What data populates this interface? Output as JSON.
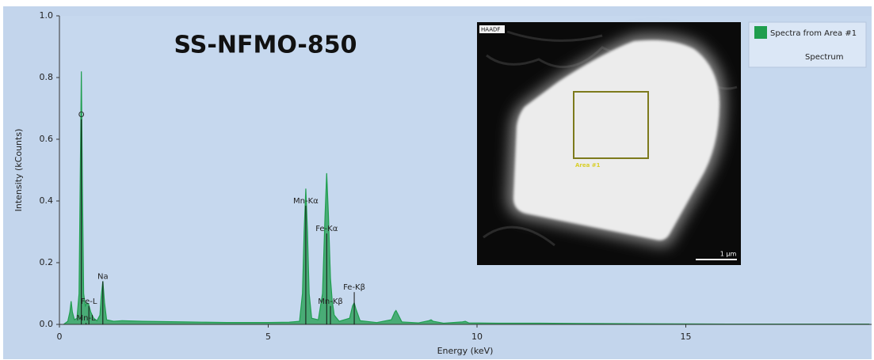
{
  "chart_data": {
    "type": "area",
    "title": "SS-NFMO-850",
    "x_label": "Energy (keV)",
    "y_label": "Intensity (kCounts)",
    "xlim": [
      0,
      19.45
    ],
    "ylim": [
      0,
      1.0
    ],
    "xticks": [
      0,
      5,
      10,
      15
    ],
    "yticks": [
      {
        "value": 0,
        "label": "0.0"
      },
      0.2,
      0.4,
      0.6,
      0.8,
      {
        "value": 1,
        "label": "1.0"
      }
    ],
    "x": [
      0.1,
      0.2,
      0.25,
      0.28,
      0.31,
      0.36,
      0.42,
      0.47,
      0.5,
      0.525,
      0.55,
      0.58,
      0.62,
      0.66,
      0.7,
      0.75,
      0.82,
      0.9,
      0.97,
      1.0,
      1.04,
      1.08,
      1.13,
      1.3,
      1.5,
      2.0,
      2.5,
      3.0,
      3.5,
      4.0,
      4.5,
      5.0,
      5.5,
      5.75,
      5.82,
      5.86,
      5.9,
      5.94,
      5.98,
      6.04,
      6.2,
      6.3,
      6.36,
      6.4,
      6.44,
      6.49,
      6.53,
      6.58,
      6.7,
      6.95,
      7.02,
      7.06,
      7.1,
      7.2,
      7.6,
      7.95,
      8.03,
      8.06,
      8.1,
      8.2,
      8.6,
      8.85,
      8.9,
      8.95,
      9.2,
      9.65,
      9.72,
      9.8,
      10.5,
      11.5,
      12.5,
      14,
      16,
      18,
      19.4
    ],
    "series": [
      {
        "name": "Spectra from Area #1",
        "color": "#1f9e4e",
        "values": [
          0,
          0.01,
          0.04,
          0.075,
          0.04,
          0.015,
          0.02,
          0.1,
          0.5,
          0.82,
          0.45,
          0.1,
          0.06,
          0.07,
          0.065,
          0.04,
          0.02,
          0.012,
          0.03,
          0.09,
          0.14,
          0.07,
          0.015,
          0.01,
          0.012,
          0.01,
          0.009,
          0.008,
          0.007,
          0.006,
          0.006,
          0.006,
          0.007,
          0.01,
          0.1,
          0.3,
          0.44,
          0.3,
          0.1,
          0.02,
          0.015,
          0.1,
          0.35,
          0.49,
          0.36,
          0.15,
          0.08,
          0.03,
          0.01,
          0.02,
          0.06,
          0.07,
          0.05,
          0.012,
          0.006,
          0.015,
          0.04,
          0.045,
          0.035,
          0.008,
          0.005,
          0.012,
          0.015,
          0.01,
          0.004,
          0.008,
          0.01,
          0.005,
          0.004,
          0.004,
          0.003,
          0.002,
          0.001,
          0.001,
          0.001
        ]
      }
    ],
    "legend_group": "Spectrum",
    "annotations": [
      {
        "text": "O",
        "x": 0.525,
        "y": 0.68
      },
      {
        "text": "Fe-L",
        "x": 0.705,
        "y": 0.075
      },
      {
        "text": "Mn-L",
        "x": 0.637,
        "y": 0.02
      },
      {
        "text": "Na",
        "x": 1.04,
        "y": 0.155
      },
      {
        "text": "Mn-Kα",
        "x": 5.9,
        "y": 0.4
      },
      {
        "text": "Fe-Kα",
        "x": 6.4,
        "y": 0.31
      },
      {
        "text": "Mn-Kβ",
        "x": 6.49,
        "y": 0.075
      },
      {
        "text": "Fe-Kβ",
        "x": 7.06,
        "y": 0.12
      }
    ],
    "inset": {
      "label": "HAADF",
      "area_label": "Area #1",
      "scale_bar": "1 µm"
    }
  }
}
